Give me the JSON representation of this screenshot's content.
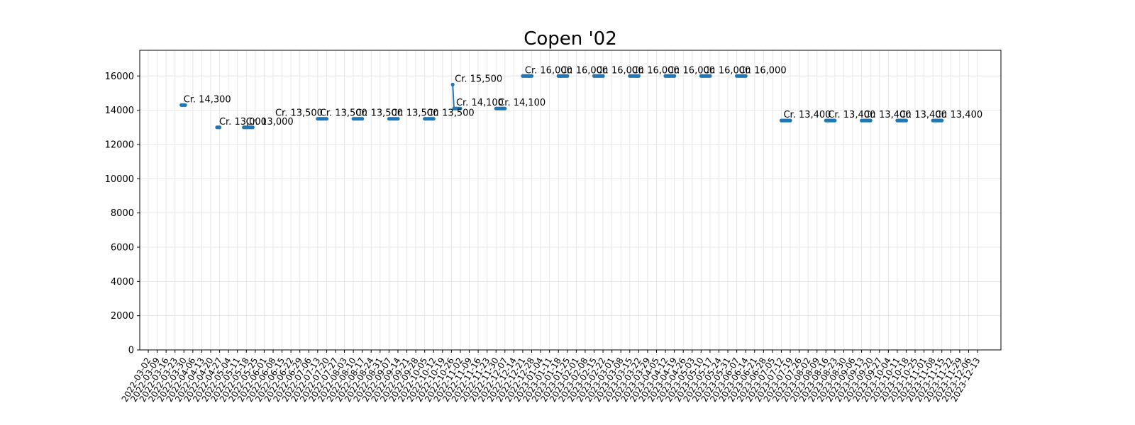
{
  "chart_data": {
    "type": "line",
    "title": "Copen '02",
    "xlabel": "",
    "ylabel": "",
    "ylim": [
      0,
      17500
    ],
    "yticks": [
      0,
      2000,
      4000,
      6000,
      8000,
      10000,
      12000,
      14000,
      16000
    ],
    "grid": true,
    "legend": "none",
    "colors": {
      "series": "#1f77b4",
      "grid": "#e6e6e6",
      "axis": "#000000"
    },
    "x_ticks": [
      "2022-03-02",
      "2022-03-09",
      "2022-03-16",
      "2022-03-23",
      "2022-03-30",
      "2022-04-06",
      "2022-04-13",
      "2022-04-20",
      "2022-04-27",
      "2022-05-04",
      "2022-05-11",
      "2022-05-18",
      "2022-05-25",
      "2022-06-01",
      "2022-06-08",
      "2022-06-15",
      "2022-06-22",
      "2022-06-29",
      "2022-07-06",
      "2022-07-13",
      "2022-07-20",
      "2022-07-27",
      "2022-08-03",
      "2022-08-10",
      "2022-08-17",
      "2022-08-24",
      "2022-08-31",
      "2022-09-07",
      "2022-09-14",
      "2022-09-21",
      "2022-09-28",
      "2022-10-05",
      "2022-10-12",
      "2022-10-19",
      "2022-10-26",
      "2022-11-02",
      "2022-11-09",
      "2022-11-16",
      "2022-11-23",
      "2022-11-30",
      "2022-12-07",
      "2022-12-14",
      "2022-12-21",
      "2022-12-28",
      "2023-01-04",
      "2023-01-11",
      "2023-01-18",
      "2023-01-25",
      "2023-02-01",
      "2023-02-08",
      "2023-02-15",
      "2023-02-22",
      "2023-03-01",
      "2023-03-08",
      "2023-03-15",
      "2023-03-22",
      "2023-03-29",
      "2023-04-05",
      "2023-04-12",
      "2023-04-19",
      "2023-04-26",
      "2023-05-03",
      "2023-05-10",
      "2023-05-17",
      "2023-05-24",
      "2023-05-31",
      "2023-06-07",
      "2023-06-14",
      "2023-06-21",
      "2023-06-28",
      "2023-07-05",
      "2023-07-12",
      "2023-07-19",
      "2023-07-26",
      "2023-08-02",
      "2023-08-09",
      "2023-08-16",
      "2023-08-23",
      "2023-08-30",
      "2023-09-06",
      "2023-09-13",
      "2023-09-20",
      "2023-09-27",
      "2023-10-04",
      "2023-10-11",
      "2023-10-18",
      "2023-10-25",
      "2023-11-01",
      "2023-11-08",
      "2023-11-15",
      "2023-11-22",
      "2023-11-29",
      "2023-12-06",
      "2023-12-13"
    ],
    "series": [
      {
        "points": [
          [
            "2022-03-28",
            14300
          ],
          [
            "2022-03-31",
            14300
          ]
        ]
      },
      {
        "points": [
          [
            "2022-04-25",
            13000
          ],
          [
            "2022-04-27",
            13000
          ]
        ]
      },
      {
        "points": [
          [
            "2022-05-16",
            13000
          ],
          [
            "2022-05-23",
            13000
          ]
        ]
      },
      {
        "points": [
          [
            "2022-07-13",
            13500
          ],
          [
            "2022-07-20",
            13500
          ]
        ]
      },
      {
        "points": [
          [
            "2022-08-10",
            13500
          ],
          [
            "2022-08-17",
            13500
          ]
        ]
      },
      {
        "points": [
          [
            "2022-09-07",
            13500
          ],
          [
            "2022-09-14",
            13500
          ]
        ]
      },
      {
        "points": [
          [
            "2022-10-05",
            13500
          ],
          [
            "2022-10-12",
            13500
          ]
        ]
      },
      {
        "points": [
          [
            "2022-10-27",
            15500
          ],
          [
            "2022-10-28",
            14100
          ],
          [
            "2022-11-02",
            14100
          ]
        ]
      },
      {
        "points": [
          [
            "2022-11-30",
            14100
          ],
          [
            "2022-12-07",
            14100
          ]
        ]
      },
      {
        "points": [
          [
            "2022-12-21",
            16000
          ],
          [
            "2022-12-28",
            16000
          ]
        ]
      },
      {
        "points": [
          [
            "2023-01-18",
            16000
          ],
          [
            "2023-01-25",
            16000
          ]
        ]
      },
      {
        "points": [
          [
            "2023-02-15",
            16000
          ],
          [
            "2023-02-22",
            16000
          ]
        ]
      },
      {
        "points": [
          [
            "2023-03-15",
            16000
          ],
          [
            "2023-03-22",
            16000
          ]
        ]
      },
      {
        "points": [
          [
            "2023-04-12",
            16000
          ],
          [
            "2023-04-19",
            16000
          ]
        ]
      },
      {
        "points": [
          [
            "2023-05-10",
            16000
          ],
          [
            "2023-05-17",
            16000
          ]
        ]
      },
      {
        "points": [
          [
            "2023-06-07",
            16000
          ],
          [
            "2023-06-14",
            16000
          ]
        ]
      },
      {
        "points": [
          [
            "2023-07-12",
            13400
          ],
          [
            "2023-07-19",
            13400
          ]
        ]
      },
      {
        "points": [
          [
            "2023-08-16",
            13400
          ],
          [
            "2023-08-23",
            13400
          ]
        ]
      },
      {
        "points": [
          [
            "2023-09-13",
            13400
          ],
          [
            "2023-09-20",
            13400
          ]
        ]
      },
      {
        "points": [
          [
            "2023-10-11",
            13400
          ],
          [
            "2023-10-18",
            13400
          ]
        ]
      },
      {
        "points": [
          [
            "2023-11-08",
            13400
          ],
          [
            "2023-11-15",
            13400
          ]
        ]
      }
    ],
    "annotations": [
      {
        "x": "2022-03-28",
        "y": 14300,
        "text": "Cr. 14,300"
      },
      {
        "x": "2022-04-25",
        "y": 13000,
        "text": "Cr. 13,000"
      },
      {
        "x": "2022-05-16",
        "y": 13000,
        "text": "Cr. 13,000"
      },
      {
        "x": "2022-06-08",
        "y": 13500,
        "text": "Cr. 13,500"
      },
      {
        "x": "2022-07-13",
        "y": 13500,
        "text": "Cr. 13,500"
      },
      {
        "x": "2022-08-10",
        "y": 13500,
        "text": "Cr. 13,500"
      },
      {
        "x": "2022-09-07",
        "y": 13500,
        "text": "Cr. 13,500"
      },
      {
        "x": "2022-10-05",
        "y": 13500,
        "text": "Cr. 13,500"
      },
      {
        "x": "2022-10-27",
        "y": 15500,
        "text": "Cr. 15,500"
      },
      {
        "x": "2022-10-28",
        "y": 14100,
        "text": "Cr. 14,100"
      },
      {
        "x": "2022-11-30",
        "y": 14100,
        "text": "Cr. 14,100"
      },
      {
        "x": "2022-12-21",
        "y": 16000,
        "text": "Cr. 16,000"
      },
      {
        "x": "2023-01-18",
        "y": 16000,
        "text": "Cr. 16,000"
      },
      {
        "x": "2023-02-15",
        "y": 16000,
        "text": "Cr. 16,000"
      },
      {
        "x": "2023-03-15",
        "y": 16000,
        "text": "Cr. 16,000"
      },
      {
        "x": "2023-04-12",
        "y": 16000,
        "text": "Cr. 16,000"
      },
      {
        "x": "2023-05-10",
        "y": 16000,
        "text": "Cr. 16,000"
      },
      {
        "x": "2023-06-07",
        "y": 16000,
        "text": "Cr. 16,000"
      },
      {
        "x": "2023-07-12",
        "y": 13400,
        "text": "Cr. 13,400"
      },
      {
        "x": "2023-08-16",
        "y": 13400,
        "text": "Cr. 13,400"
      },
      {
        "x": "2023-09-13",
        "y": 13400,
        "text": "Cr. 13,400"
      },
      {
        "x": "2023-10-11",
        "y": 13400,
        "text": "Cr. 13,400"
      },
      {
        "x": "2023-11-08",
        "y": 13400,
        "text": "Cr. 13,400"
      }
    ]
  }
}
